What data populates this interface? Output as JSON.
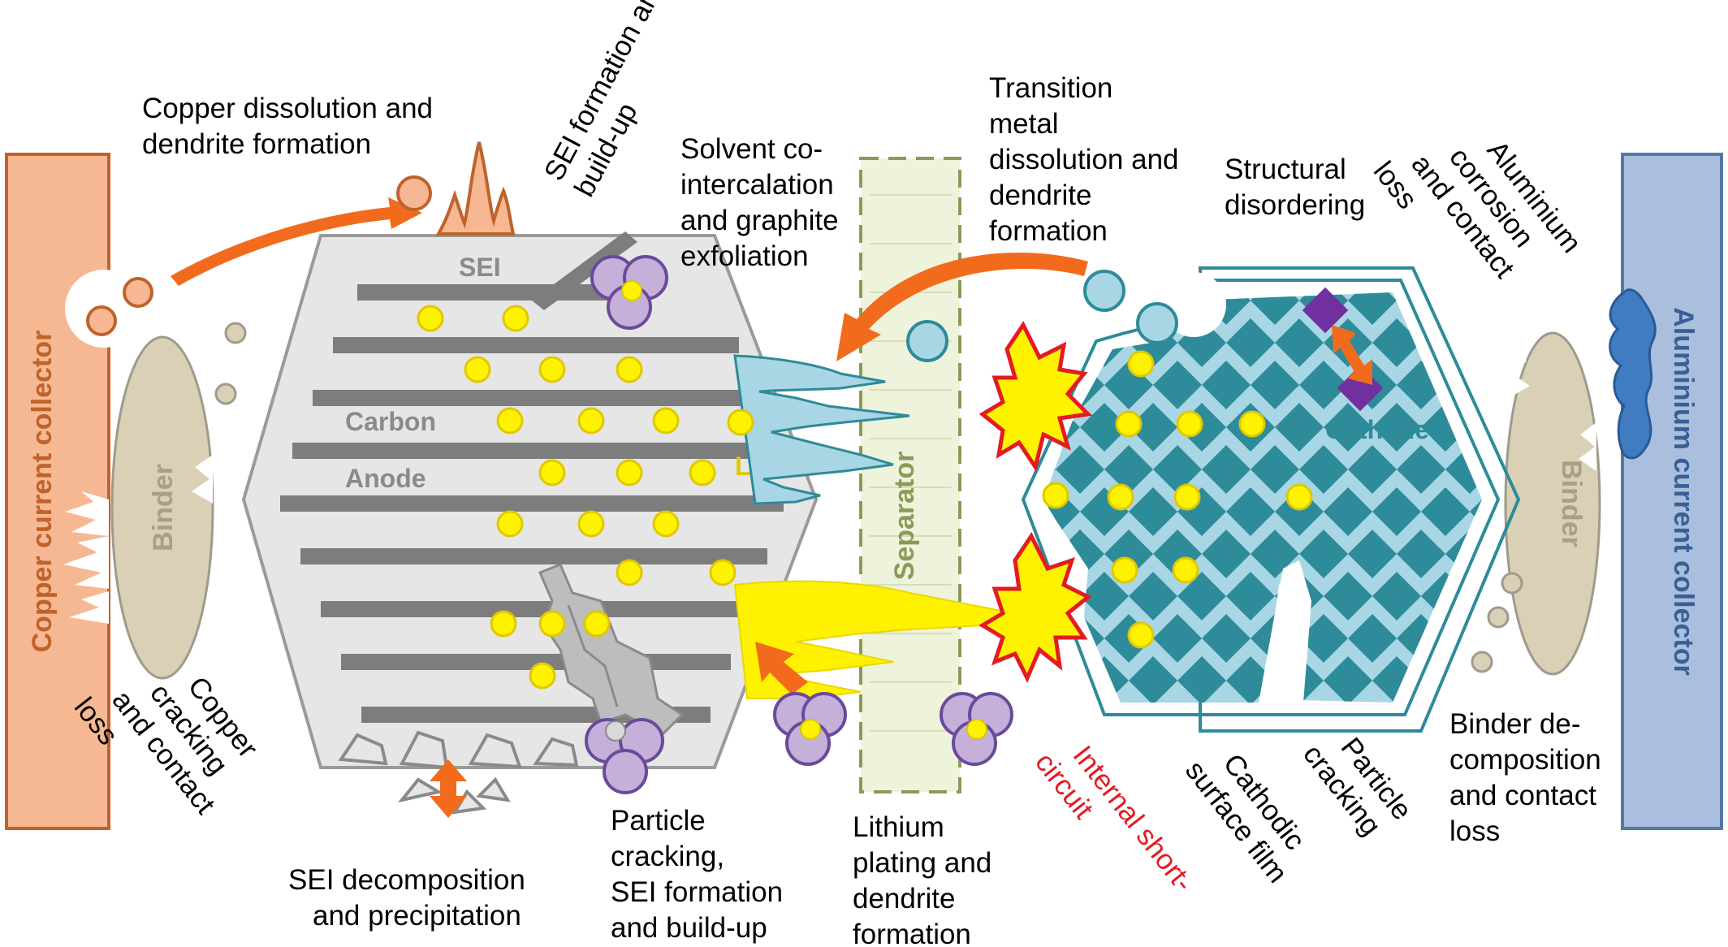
{
  "labels": {
    "copper_dissolution": [
      "Copper dissolution and",
      "dendrite formation"
    ],
    "sei_formation": [
      "SEI formation and",
      "build-up"
    ],
    "solvent_cointercalation": [
      "Solvent co-",
      "intercalation",
      "and graphite",
      "exfoliation"
    ],
    "transition_metal": [
      "Transition",
      "metal",
      "dissolution and",
      "dendrite",
      "formation"
    ],
    "structural_disordering": [
      "Structural",
      "disordering"
    ],
    "aluminium_corrosion": [
      "Aluminium",
      "corrosion",
      "and contact",
      "loss"
    ],
    "copper_cracking": [
      "Copper",
      "cracking",
      "and contact",
      "loss"
    ],
    "sei_decomposition": [
      "SEI decomposition",
      "and precipitation"
    ],
    "particle_cracking_sei": [
      "Particle",
      "cracking,",
      "SEI formation",
      "and build-up"
    ],
    "lithium_plating": [
      "Lithium",
      "plating and",
      "dendrite",
      "formation"
    ],
    "internal_short": [
      "Internal short-",
      "circuit"
    ],
    "cathodic_film": [
      "Cathodic",
      "surface film"
    ],
    "particle_cracking": [
      "Particle",
      "cracking"
    ],
    "binder_decomposition": [
      "Binder de-",
      "composition",
      "and contact",
      "loss"
    ]
  },
  "components": {
    "copper_collector": "Copper current collector",
    "aluminium_collector": "Aluminium current collector",
    "binder_left": "Binder",
    "binder_right": "Binder",
    "sei": "SEI",
    "carbon": "Carbon",
    "anode": "Anode",
    "li_ion": "Li⁺",
    "separator": "Separator",
    "cathode": "Cathode"
  },
  "colors": {
    "copper": "#f6b893",
    "copper_border": "#c0622a",
    "aluminium": "#a9bfdd",
    "aluminium_border": "#5577a6",
    "binder": "#d9d0b6",
    "anode_body": "#e6e6e6",
    "graphite_layer": "#7d7d7d",
    "lithium": "#fff200",
    "arrow": "#f26b1d",
    "cathode_light": "#a9d6e5",
    "cathode_dark": "#2e8b99",
    "solvent": "#c4b0d8",
    "separator": "#eef3dc",
    "short_circuit": "#e31b23"
  }
}
